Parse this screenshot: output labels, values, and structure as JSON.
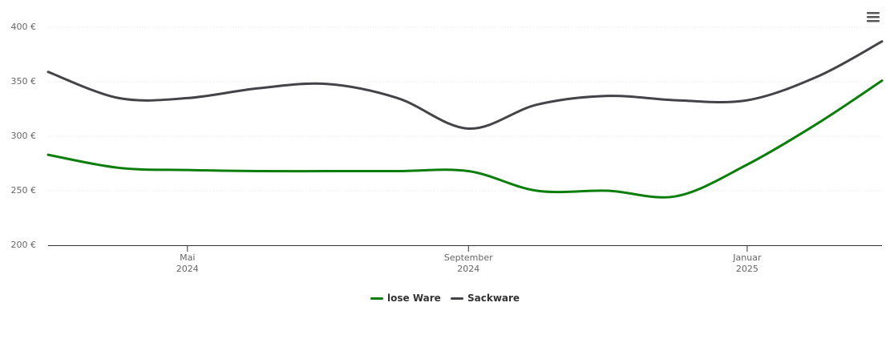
{
  "chart_data": {
    "type": "line",
    "x": [
      "2024-03",
      "2024-04",
      "2024-05",
      "2024-06",
      "2024-07",
      "2024-08",
      "2024-09",
      "2024-10",
      "2024-11",
      "2024-12",
      "2025-01",
      "2025-02",
      "2025-03"
    ],
    "series": [
      {
        "name": "lose Ware",
        "color": "#0a7d0a",
        "values": [
          283,
          271,
          269,
          268,
          268,
          268,
          268,
          250,
          250,
          245,
          274,
          312,
          351
        ]
      },
      {
        "name": "Sackware",
        "color": "#434348",
        "values": [
          359,
          335,
          335,
          344,
          348,
          335,
          307,
          329,
          337,
          333,
          333,
          355,
          387
        ]
      }
    ],
    "xlim": [
      "2024-03",
      "2025-03"
    ],
    "xticks": [
      {
        "value": "2024-05",
        "label": "Mai\n2024"
      },
      {
        "value": "2024-09",
        "label": "September\n2024"
      },
      {
        "value": "2025-01",
        "label": "Januar\n2025"
      }
    ],
    "ylim": [
      200,
      400
    ],
    "yticks": [
      {
        "value": 200,
        "label": "200 €"
      },
      {
        "value": 250,
        "label": "250 €"
      },
      {
        "value": 300,
        "label": "300 €"
      },
      {
        "value": 350,
        "label": "350 €"
      },
      {
        "value": 400,
        "label": "400 €"
      }
    ],
    "grid": true
  }
}
